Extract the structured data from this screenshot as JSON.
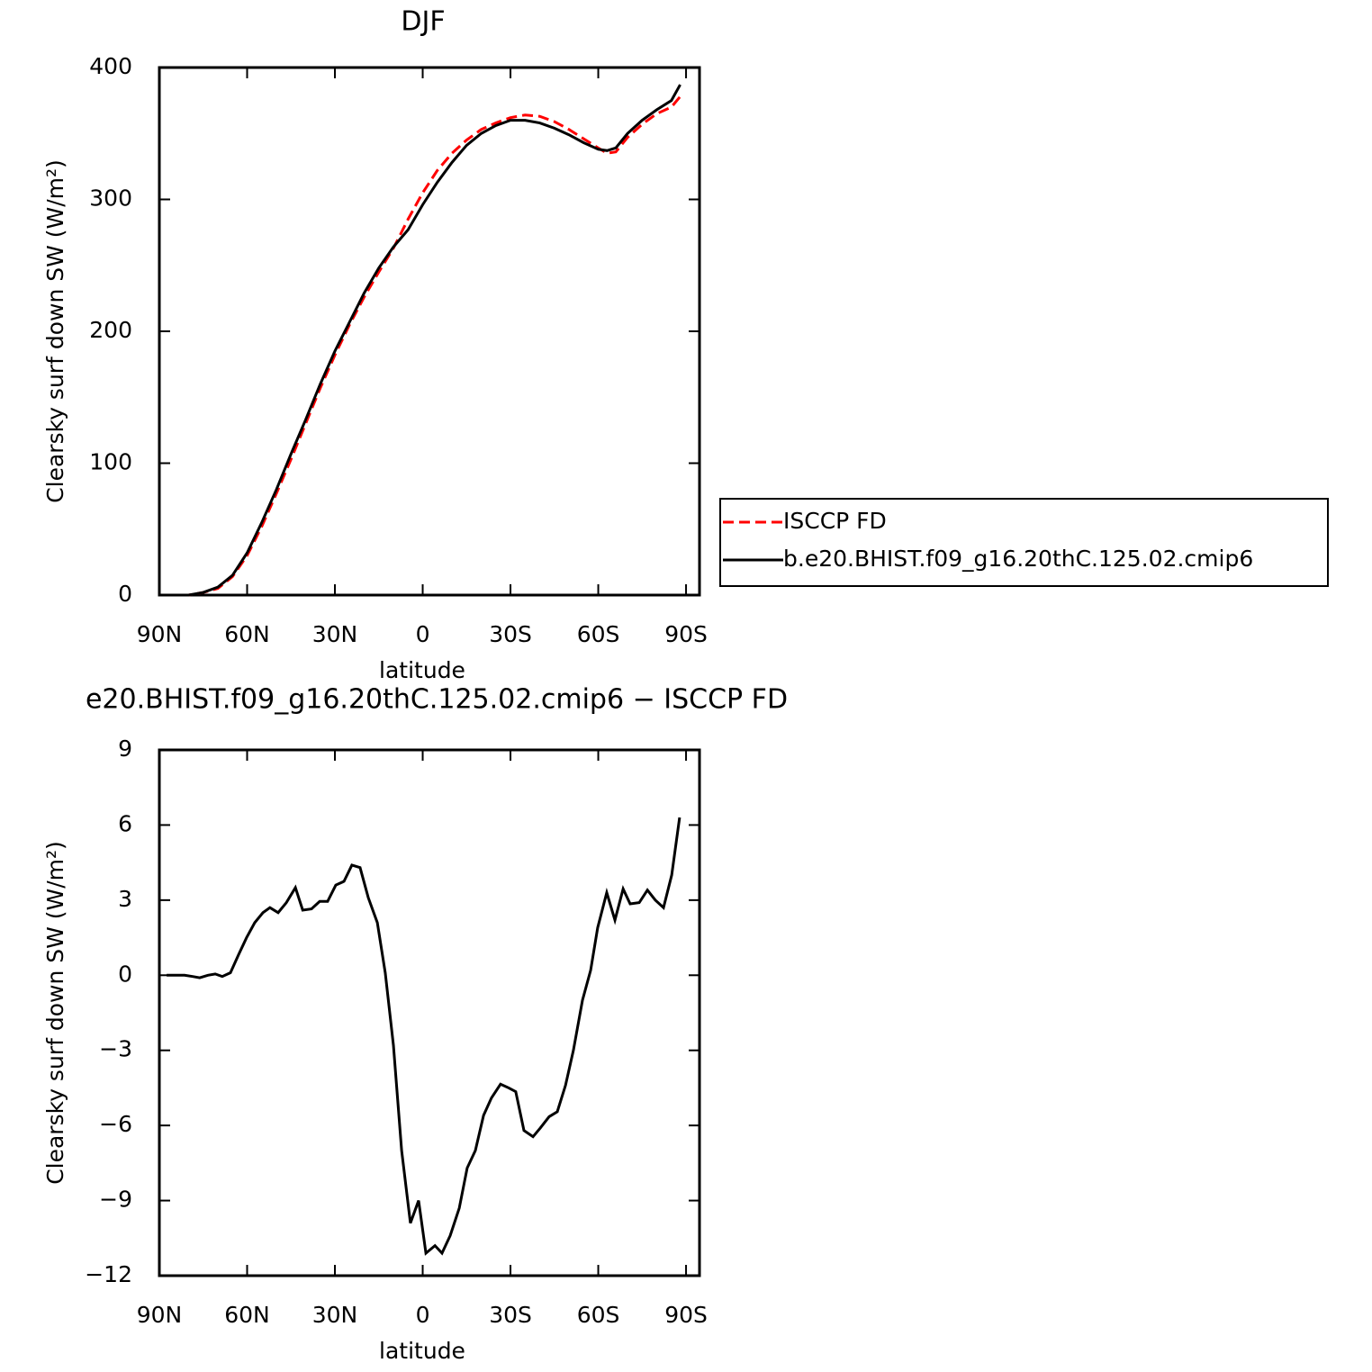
{
  "chart_data": [
    {
      "type": "line",
      "title": "DJF",
      "xlabel": "latitude",
      "ylabel": "Clearsky surf down SW (W/m²)",
      "x": [
        88,
        80,
        75,
        70,
        65,
        60,
        55,
        50,
        45,
        40,
        35,
        30,
        25,
        20,
        15,
        10,
        5,
        0,
        -5,
        -10,
        -15,
        -20,
        -25,
        -30,
        -35,
        -40,
        -45,
        -50,
        -55,
        -60,
        -63,
        -66,
        -70,
        -75,
        -80,
        -85,
        -88
      ],
      "series": [
        {
          "name": "ISCCP FD",
          "color": "#ff0000",
          "style": "dashed",
          "values": [
            0,
            0,
            2,
            5,
            14,
            30,
            52,
            77,
            103,
            130,
            157,
            182,
            205,
            226,
            245,
            263,
            285,
            305,
            322,
            335,
            345,
            353,
            358,
            362,
            364,
            363,
            359,
            353,
            346,
            339,
            335,
            336,
            347,
            357,
            365,
            370,
            378
          ]
        },
        {
          "name": "b.e20.BHIST.f09_g16.20thC.125.02.cmip6",
          "color": "#000000",
          "style": "solid",
          "values": [
            0,
            0,
            2,
            6,
            15,
            32,
            55,
            80,
            107,
            133,
            160,
            185,
            207,
            229,
            248,
            264,
            277,
            296,
            313,
            328,
            341,
            350,
            356,
            360,
            360,
            358,
            354,
            349,
            343,
            338,
            337,
            339,
            350,
            360,
            368,
            375,
            387
          ]
        }
      ],
      "xlim": [
        90,
        -94.6
      ],
      "xticks": [
        {
          "value": 90,
          "label": "90N"
        },
        {
          "value": 60,
          "label": "60N"
        },
        {
          "value": 30,
          "label": "30N"
        },
        0,
        {
          "value": -30,
          "label": "30S"
        },
        {
          "value": -60,
          "label": "60S"
        },
        {
          "value": -90,
          "label": "90S"
        }
      ],
      "ylim": [
        0,
        400
      ],
      "yticks": [
        0,
        100,
        200,
        300,
        400
      ],
      "legend": "right"
    },
    {
      "type": "line",
      "title": "e20.BHIST.f09_g16.20thC.125.02.cmip6 − ISCCP FD",
      "xlabel": "latitude",
      "ylabel": "Clearsky surf down SW (W/m²)",
      "x": [
        87.5,
        84.5,
        81.4,
        78.6,
        76.2,
        73.4,
        70.9,
        68.5,
        65.7,
        63.0,
        60.2,
        57.4,
        54.6,
        52.2,
        49.4,
        46.6,
        43.5,
        41.0,
        38.0,
        35.2,
        32.5,
        29.7,
        26.9,
        24.2,
        21.4,
        18.6,
        15.5,
        12.8,
        10.0,
        7.2,
        4.2,
        1.4,
        -1.1,
        -4.2,
        -6.6,
        -9.4,
        -12.5,
        -15.2,
        -18.0,
        -20.8,
        -23.5,
        -26.6,
        -29.4,
        -31.8,
        -34.6,
        -37.7,
        -40.2,
        -43.2,
        -46.0,
        -48.8,
        -51.5,
        -54.6,
        -57.4,
        -59.8,
        -62.9,
        -65.7,
        -68.5,
        -70.9,
        -74.0,
        -76.8,
        -79.5,
        -82.3,
        -85.1,
        -87.8
      ],
      "series": [
        {
          "name": null,
          "color": "#000000",
          "style": "solid",
          "values": [
            0,
            0,
            0,
            -0.05,
            -0.1,
            0,
            0.05,
            -0.05,
            0.1,
            0.8,
            1.5,
            2.1,
            2.5,
            2.7,
            2.5,
            2.9,
            3.5,
            2.6,
            2.65,
            2.95,
            2.95,
            3.6,
            3.75,
            4.4,
            4.3,
            3.1,
            2.1,
            0.1,
            -2.8,
            -7.0,
            -9.9,
            -9.0,
            -11.1,
            -10.8,
            -11.1,
            -10.4,
            -9.3,
            -7.7,
            -7.0,
            -5.6,
            -4.9,
            -4.35,
            -4.5,
            -4.65,
            -6.2,
            -6.45,
            -6.1,
            -5.65,
            -5.45,
            -4.4,
            -3.0,
            -1.0,
            0.2,
            1.9,
            3.3,
            2.2,
            3.45,
            2.85,
            2.9,
            3.4,
            3.0,
            2.7,
            4.0,
            6.3
          ]
        }
      ],
      "xlim": [
        90,
        -94.6
      ],
      "xticks": [
        {
          "value": 90,
          "label": "90N"
        },
        {
          "value": 60,
          "label": "60N"
        },
        {
          "value": 30,
          "label": "30N"
        },
        0,
        {
          "value": -30,
          "label": "30S"
        },
        {
          "value": -60,
          "label": "60S"
        },
        {
          "value": -90,
          "label": "90S"
        }
      ],
      "ylim": [
        -12,
        9
      ],
      "yticks": [
        {
          "value": -12,
          "label": "−12"
        },
        {
          "value": -9,
          "label": "−9"
        },
        {
          "value": -6,
          "label": "−6"
        },
        {
          "value": -3,
          "label": "−3"
        },
        0,
        3,
        6,
        9
      ]
    }
  ]
}
